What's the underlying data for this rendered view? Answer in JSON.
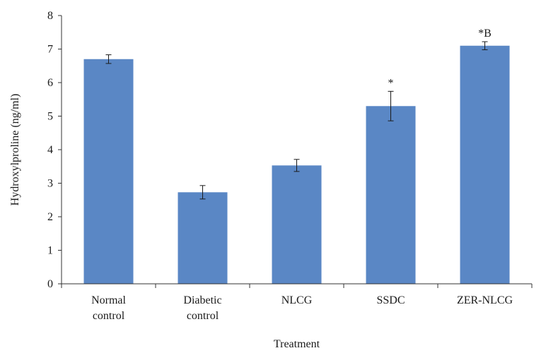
{
  "chart_data": {
    "type": "bar",
    "title": "",
    "xlabel": "Treatment",
    "ylabel": "Hydroxylproline (ng/ml)",
    "ylim": [
      0,
      8
    ],
    "yticks": [
      "0",
      "1",
      "2",
      "3",
      "4",
      "5",
      "6",
      "7",
      "8"
    ],
    "grid": false,
    "legend": "none",
    "bar_color": "#5a87c5",
    "categories": [
      [
        "Normal",
        "control"
      ],
      [
        "Diabetic",
        "control"
      ],
      [
        "NLCG"
      ],
      [
        "SSDC"
      ],
      [
        "ZER-NLCG"
      ]
    ],
    "values": [
      6.7,
      2.73,
      3.53,
      5.3,
      7.1
    ],
    "errors": [
      0.13,
      0.2,
      0.18,
      0.44,
      0.12
    ],
    "annotations": [
      "",
      "",
      "",
      "*",
      "*B"
    ]
  }
}
